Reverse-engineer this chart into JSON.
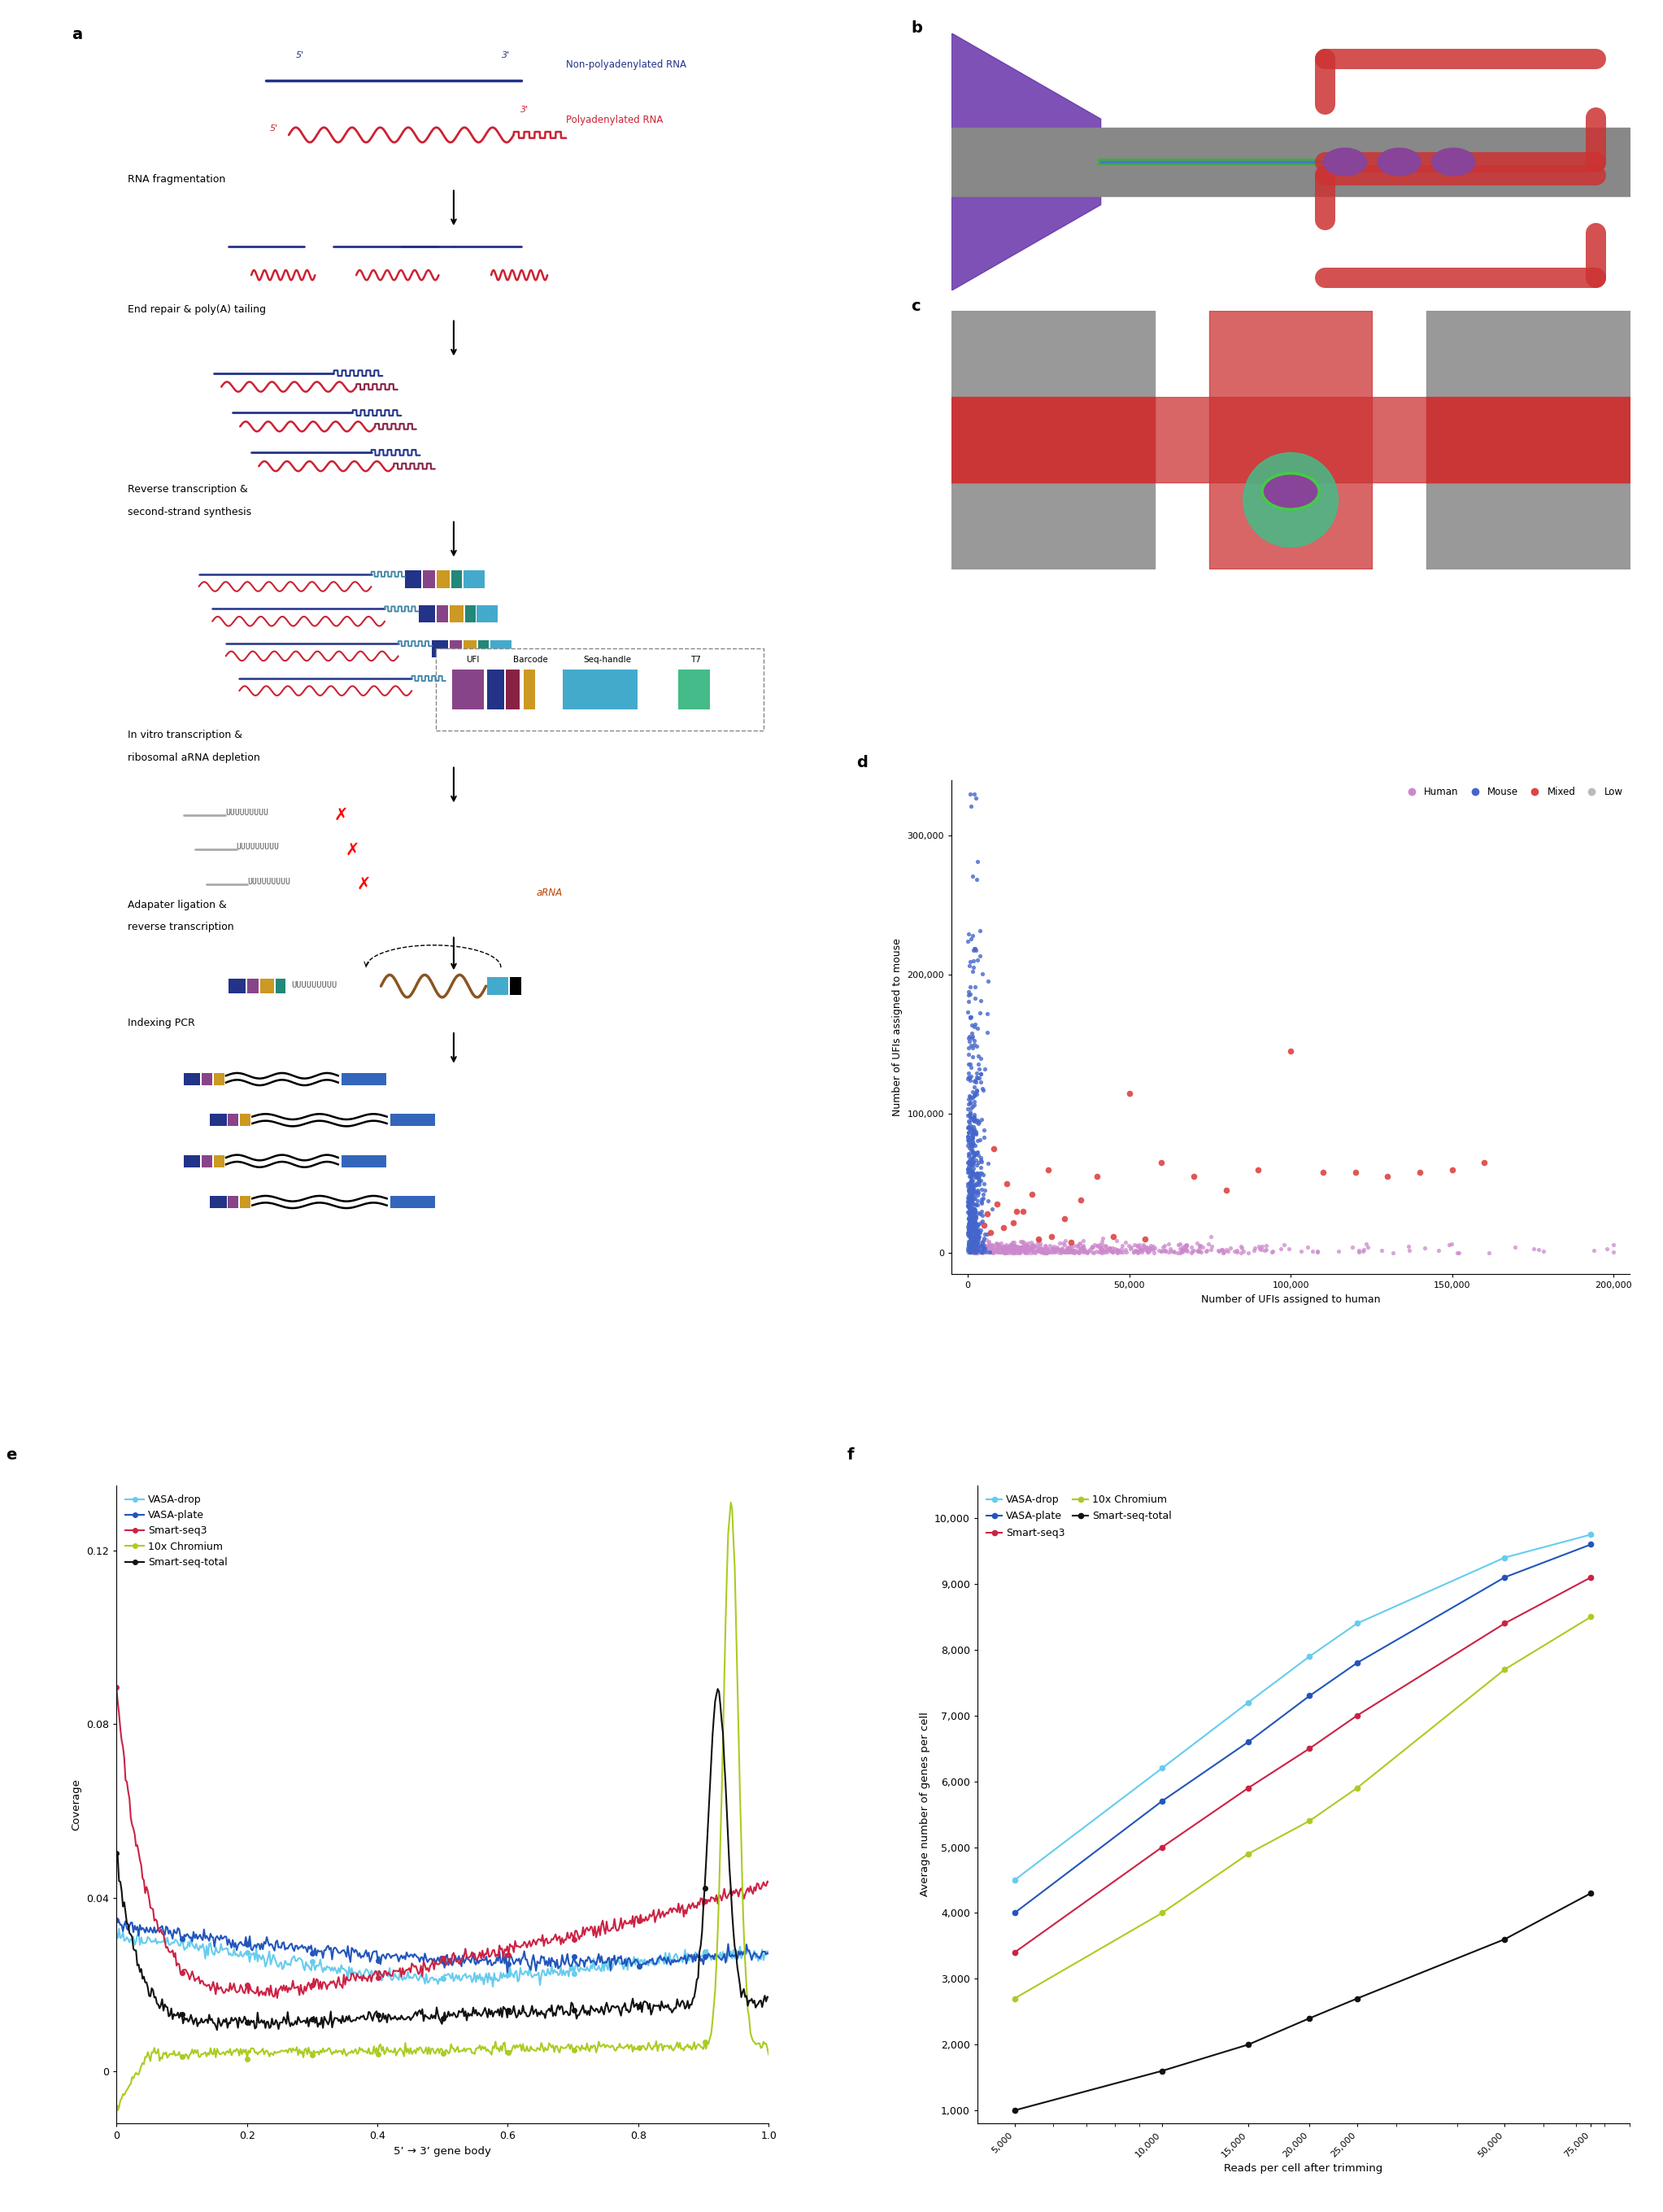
{
  "panel_label_fontsize": 14,
  "panel_label_fontweight": "bold",
  "scatter_d": {
    "xlabel": "Number of UFIs assigned to human",
    "ylabel": "Number of UFIs assigned to mouse",
    "xlim": [
      -5000,
      205000
    ],
    "ylim": [
      -15000,
      340000
    ],
    "xticks": [
      0,
      50000,
      100000,
      150000,
      200000
    ],
    "yticks": [
      0,
      100000,
      200000,
      300000
    ],
    "xticklabels": [
      "0",
      "50,000",
      "100,000",
      "150,000",
      "200,000"
    ],
    "yticklabels": [
      "0",
      "100,000",
      "200,000",
      "300,000"
    ],
    "legend_labels": [
      "Human",
      "Mouse",
      "Mixed",
      "Low"
    ],
    "human_color": "#cc88cc",
    "mouse_color": "#4466cc",
    "mixed_color": "#dd4444",
    "low_color": "#bbbbbb"
  },
  "coverage_e": {
    "xlabel": "5’ → 3’ gene body",
    "ylabel": "Coverage",
    "xlim": [
      0,
      1.0
    ],
    "ylim": [
      -0.012,
      0.135
    ],
    "xticks": [
      0,
      0.2,
      0.4,
      0.6,
      0.8,
      1.0
    ],
    "yticks": [
      0,
      0.04,
      0.08,
      0.12
    ],
    "yticklabels": [
      "0",
      "0.04",
      "0.08",
      "0.12"
    ]
  },
  "genes_f": {
    "xlabel": "Reads per cell after trimming",
    "ylabel": "Average number of genes per cell",
    "ylim": [
      800,
      10500
    ],
    "xticks": [
      5000,
      10000,
      15000,
      20000,
      25000,
      50000,
      75000
    ],
    "xticklabels": [
      "5,000",
      "10,000",
      "15,000",
      "20,000",
      "25,000",
      "50,000",
      "75,000"
    ],
    "yticks": [
      1000,
      2000,
      3000,
      4000,
      5000,
      6000,
      7000,
      8000,
      9000,
      10000
    ],
    "yticklabels": [
      "1,000",
      "2,000",
      "3,000",
      "4,000",
      "5,000",
      "6,000",
      "7,000",
      "8,000",
      "9,000",
      "10,000"
    ]
  },
  "line_colors": {
    "VASA-drop": "#66ccee",
    "VASA-plate": "#2255bb",
    "Smart-seq3": "#cc2244",
    "10x Chromium": "#aacc22",
    "Smart-seq-total": "#111111"
  },
  "col_blue": "#223388",
  "col_red": "#cc2233",
  "col_cyan": "#44aacc",
  "col_purple": "#884488",
  "col_gold": "#cc9922",
  "col_teal": "#228877",
  "col_gray": "#888888",
  "col_dark": "#111111",
  "col_brown": "#885522",
  "col_yellow": "#ddcc22",
  "col_maroon": "#882244"
}
